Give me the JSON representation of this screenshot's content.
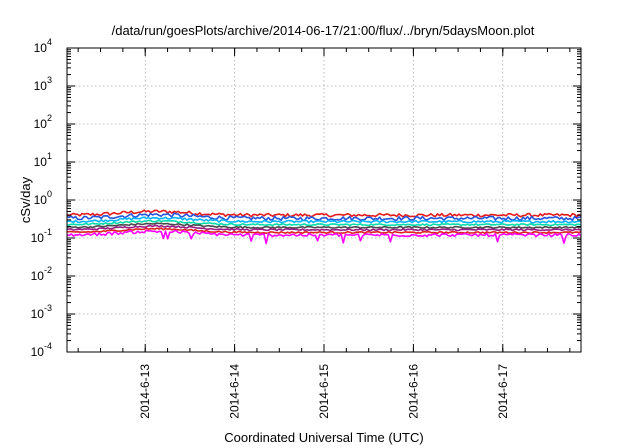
{
  "chart_data": {
    "type": "line",
    "title": "/data/run/goesPlots/archive/2014-06-17/21:00/flux/../bryn/5daysMoon.plot",
    "xlabel": "Coordinated Universal Time (UTC)",
    "ylabel": "cSv/day",
    "y_scale": "log",
    "ylim": [
      0.0001,
      10000
    ],
    "y_ticks": [
      {
        "base": "10",
        "exp": "4"
      },
      {
        "base": "10",
        "exp": "3"
      },
      {
        "base": "10",
        "exp": "2"
      },
      {
        "base": "10",
        "exp": "1"
      },
      {
        "base": "10",
        "exp": "0"
      },
      {
        "base": "10",
        "exp": "-1"
      },
      {
        "base": "10",
        "exp": "-2"
      },
      {
        "base": "10",
        "exp": "-3"
      },
      {
        "base": "10",
        "exp": "-4"
      }
    ],
    "xlim": [
      "2014-06-12 03:00",
      "2014-06-17 21:00"
    ],
    "x_ticks": [
      "2014-6-13",
      "2014-6-14",
      "2014-6-15",
      "2014-6-16",
      "2014-6-17"
    ],
    "grid": true,
    "legend": "none",
    "series": [
      {
        "color": "#e41a1c",
        "level": 0.4,
        "noise": 0.1
      },
      {
        "color": "#2255dd",
        "level": 0.33,
        "noise": 0.12
      },
      {
        "color": "#00b4ff",
        "level": 0.27,
        "noise": 0.07
      },
      {
        "color": "#00ddaa",
        "level": 0.225,
        "noise": 0.05
      },
      {
        "color": "#4a4a4a",
        "level": 0.19,
        "noise": 0.05
      },
      {
        "color": "#9a1a88",
        "level": 0.165,
        "noise": 0.05
      },
      {
        "color": "#e02020",
        "level": 0.14,
        "noise": 0.05
      },
      {
        "color": "#ff00ff",
        "level": 0.12,
        "noise": 0.09
      }
    ]
  }
}
